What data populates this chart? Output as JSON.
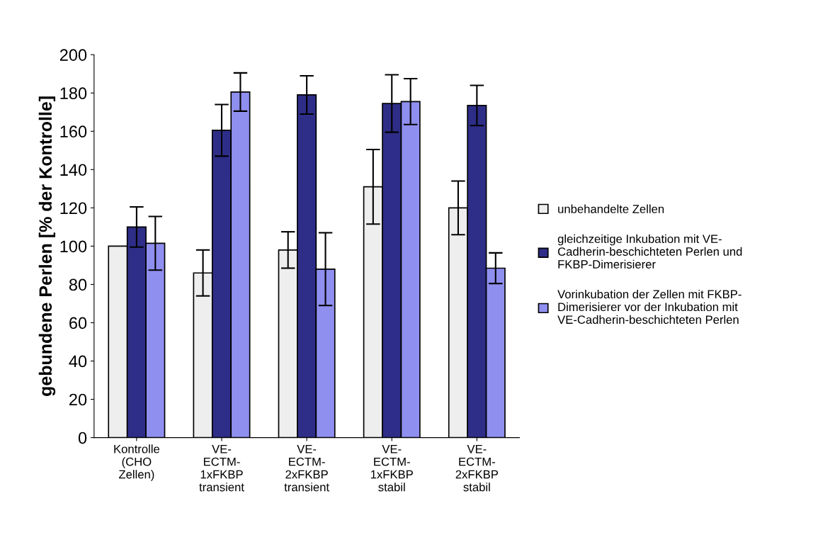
{
  "chart_data": {
    "type": "bar",
    "ylabel": "gebundene Perlen [% der Kontrolle]",
    "categories": [
      "Kontrolle\n(CHO\nZellen)",
      "VE-\nECTM-\n1xFKBP\ntransient",
      "VE-\nECTM-\n2xFKBP\ntransient",
      "VE-\nECTM-\n1xFKBP\nstabil",
      "VE-\nECTM-\n2xFKBP\nstabil"
    ],
    "series": [
      {
        "name": "unbehandelte Zellen",
        "color": "#eeeeee",
        "values": [
          100,
          86,
          98,
          131,
          120
        ],
        "errors": [
          null,
          12,
          9.5,
          19.5,
          14
        ]
      },
      {
        "name": "gleichzeitige Inkubation mit VE-\nCadherin-beschichteten Perlen und\nFKBP-Dimerisierer",
        "color": "#2e2e88",
        "values": [
          110,
          160.5,
          179,
          174.5,
          173.5
        ],
        "errors": [
          10.5,
          13.5,
          10,
          15,
          10.5
        ]
      },
      {
        "name": "Vorinkubation der Zellen mit FKBP-\nDimerisierer vor der Inkubation mit\nVE-Cadherin-beschichteten Perlen",
        "color": "#8f8ff0",
        "values": [
          101.5,
          180.5,
          88,
          175.5,
          88.5
        ],
        "errors": [
          14,
          10,
          19,
          12,
          8
        ]
      }
    ],
    "ylim": [
      0,
      200
    ],
    "yticks": [
      0,
      20,
      40,
      60,
      80,
      100,
      120,
      140,
      160,
      180,
      200
    ],
    "grid": false,
    "legend": "right"
  }
}
